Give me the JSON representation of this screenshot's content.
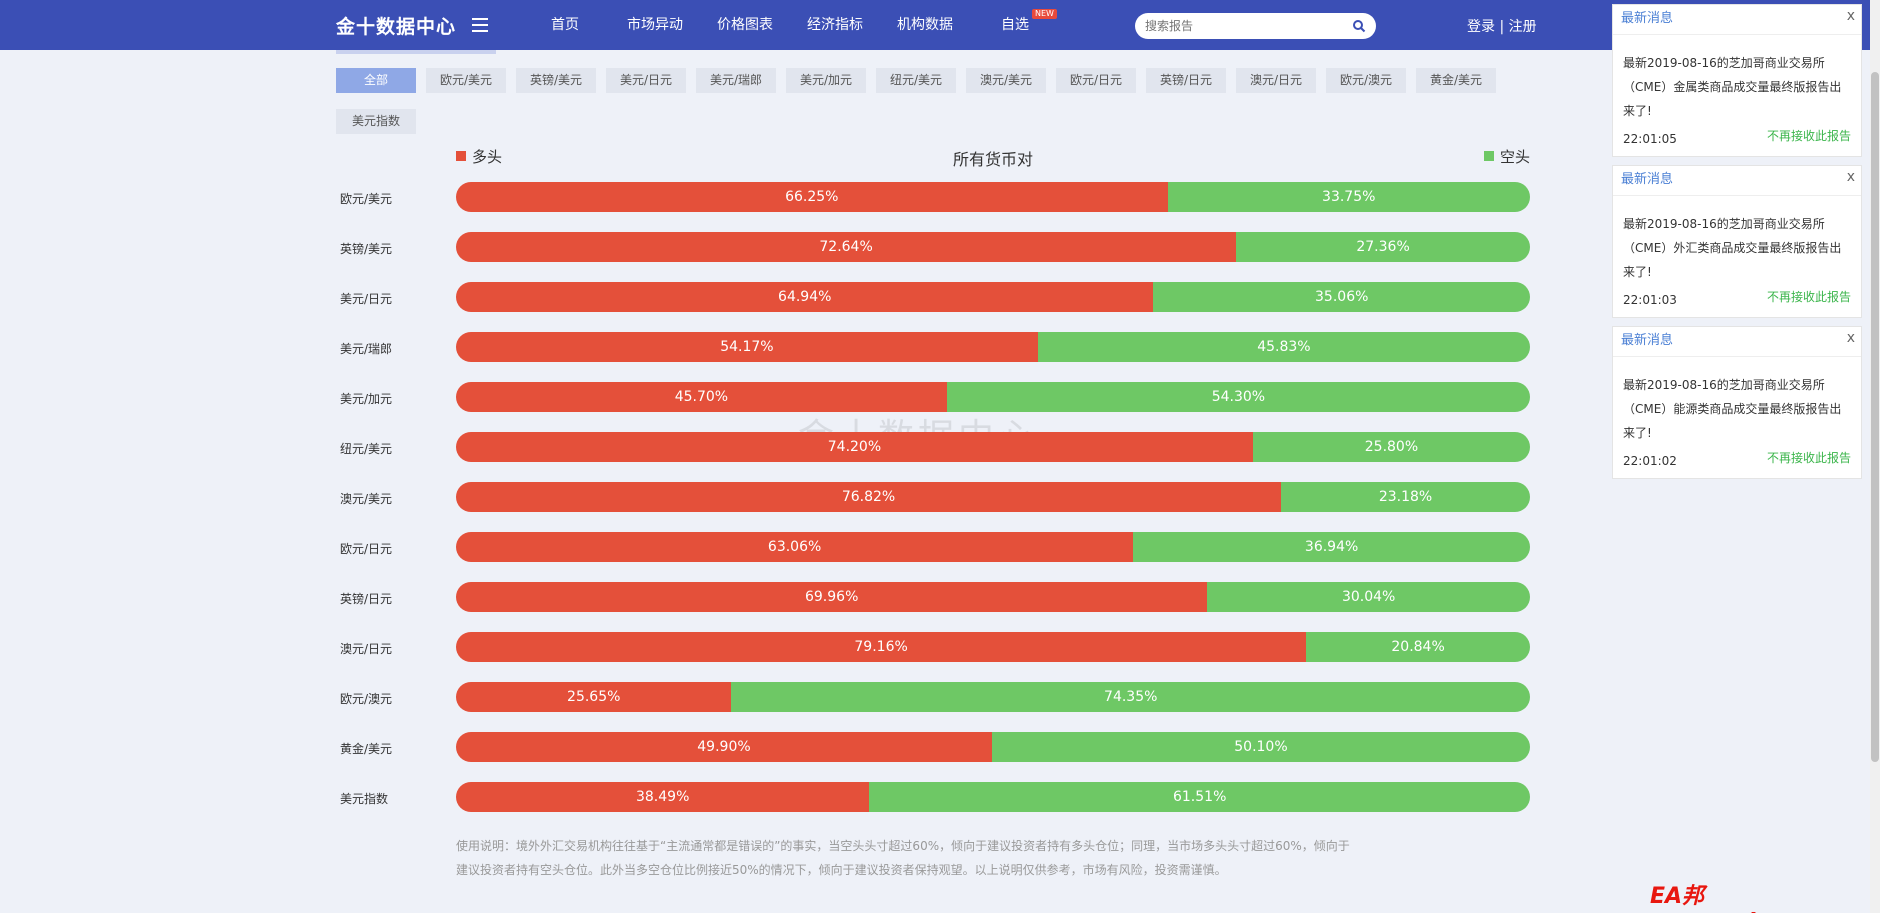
{
  "header": {
    "logo": "金十数据中心",
    "nav": [
      {
        "label": "首页"
      },
      {
        "label": "市场异动"
      },
      {
        "label": "价格图表"
      },
      {
        "label": "经济指标"
      },
      {
        "label": "机构数据"
      },
      {
        "label": "自选",
        "badge": "NEW"
      }
    ],
    "search_placeholder": "搜索报告",
    "login": "登录",
    "divider": "|",
    "register": "注册"
  },
  "tabs": [
    "全部",
    "欧元/美元",
    "英镑/美元",
    "美元/日元",
    "美元/瑞郎",
    "美元/加元",
    "纽元/美元",
    "澳元/美元",
    "欧元/日元",
    "英镑/日元",
    "澳元/日元",
    "欧元/澳元",
    "黄金/美元",
    "美元指数"
  ],
  "active_tab": "全部",
  "chart": {
    "legend_long": "多头",
    "title": "所有货币对",
    "legend_short": "空头",
    "colors": {
      "long": "#e4503a",
      "short": "#6ec865"
    }
  },
  "chart_data": {
    "type": "bar",
    "title": "所有货币对",
    "categories": [
      "欧元/美元",
      "英镑/美元",
      "美元/日元",
      "美元/瑞郎",
      "美元/加元",
      "纽元/美元",
      "澳元/美元",
      "欧元/日元",
      "英镑/日元",
      "澳元/日元",
      "欧元/澳元",
      "黄金/美元",
      "美元指数"
    ],
    "series": [
      {
        "name": "多头",
        "values": [
          66.25,
          72.64,
          64.94,
          54.17,
          45.7,
          74.2,
          76.82,
          63.06,
          69.96,
          79.16,
          25.65,
          49.9,
          38.49
        ]
      },
      {
        "name": "空头",
        "values": [
          33.75,
          27.36,
          35.06,
          45.83,
          54.3,
          25.8,
          23.18,
          36.94,
          30.04,
          20.84,
          74.35,
          50.1,
          61.51
        ]
      }
    ],
    "stacked": true,
    "orientation": "horizontal",
    "unit": "%"
  },
  "watermark": "金十数据中心",
  "note": "使用说明：境外外汇交易机构往往基于“主流通常都是错误的”的事实，当空头头寸超过60%，倾向于建议投资者持有多头仓位；同理，当市场多头头寸超过60%，倾向于建议投资者持有空头仓位。此外当多空仓位比例接近50%的情况下，倾向于建议投资者保持观望。以上说明仅供参考，市场有风险，投资需谨慎。",
  "notifications": [
    {
      "header": "最新消息",
      "close": "x",
      "text": "最新2019-08-16的芝加哥商业交易所（CME）金属类商品成交量最终版报告出来了!",
      "time": "22:01:05",
      "stop": "不再接收此报告"
    },
    {
      "header": "最新消息",
      "close": "x",
      "text": "最新2019-08-16的芝加哥商业交易所（CME）外汇类商品成交量最终版报告出来了!",
      "time": "22:01:03",
      "stop": "不再接收此报告"
    },
    {
      "header": "最新消息",
      "close": "x",
      "text": "最新2019-08-16的芝加哥商业交易所（CME）能源类商品成交量最终版报告出来了!",
      "time": "22:01:02",
      "stop": "不再接收此报告"
    }
  ],
  "brandmark": "EA邦 www.eabang.com"
}
